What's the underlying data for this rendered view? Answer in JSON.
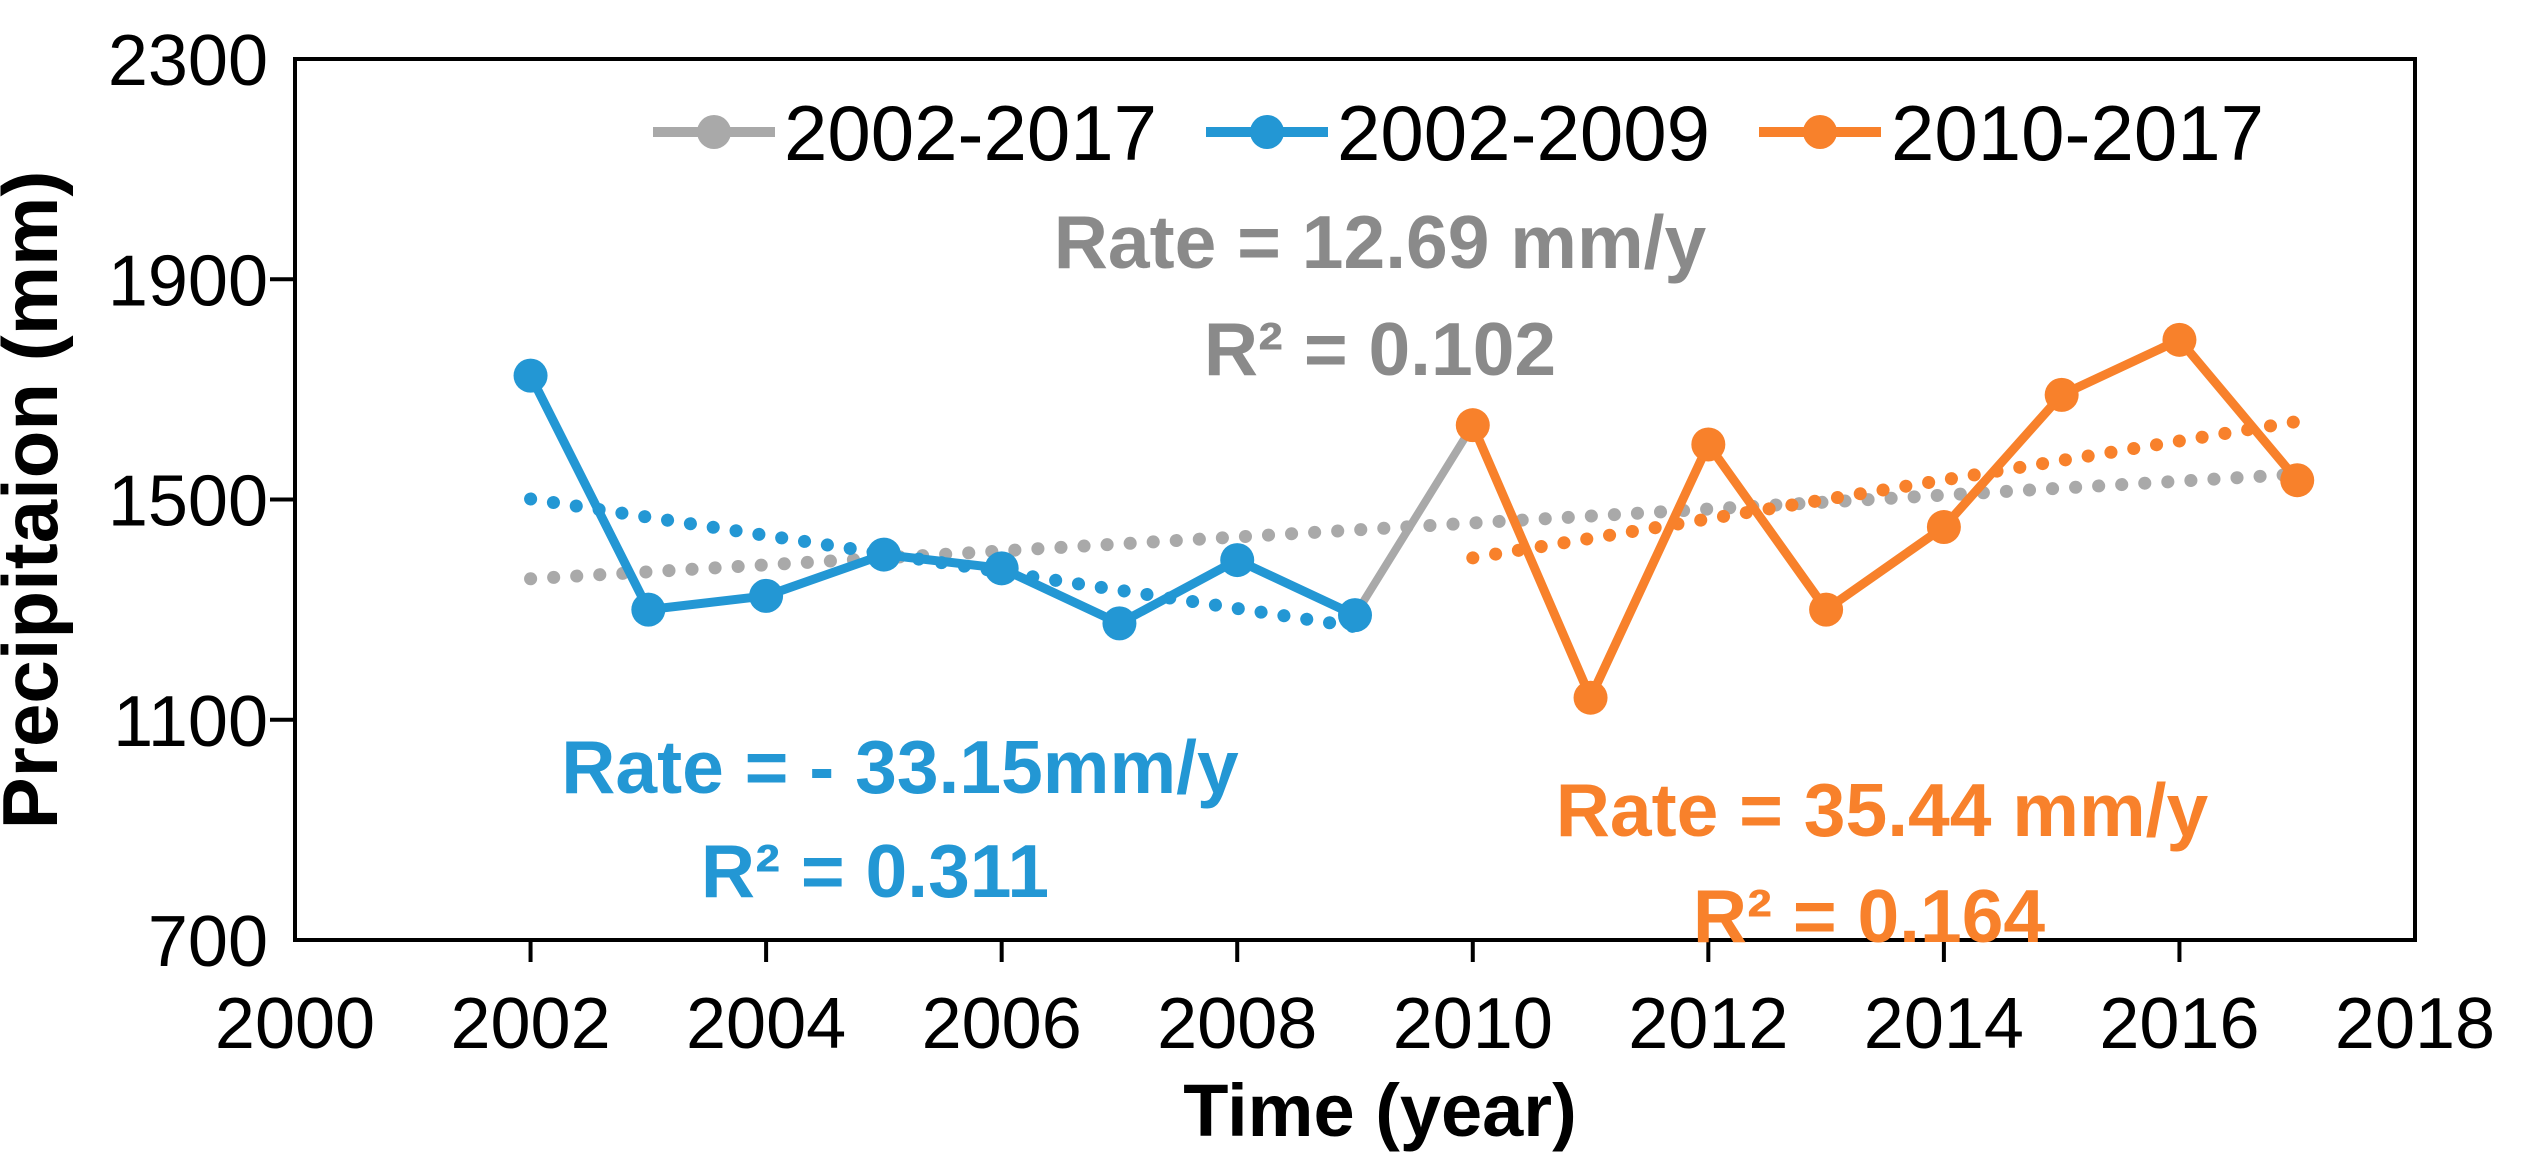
{
  "figure": {
    "xlabel": "Time (year)",
    "ylabel": "Precipitaion (mm)"
  },
  "legend": {
    "items": [
      {
        "label": "2002-2017",
        "color": "#A9A9A9"
      },
      {
        "label": "2002-2009",
        "color": "#2397D4"
      },
      {
        "label": "2010-2017",
        "color": "#F8812B"
      }
    ]
  },
  "annotations": {
    "full_period": {
      "line1": "Rate = 12.69 mm/y",
      "line2": "R² = 0.102",
      "color": "#8A8A8A"
    },
    "early_period": {
      "line1": "Rate = - 33.15mm/y",
      "line2": "R² = 0.311",
      "color": "#2397D4"
    },
    "late_period": {
      "line1": "Rate = 35.44 mm/y",
      "line2": "R² = 0.164",
      "color": "#F8812B"
    }
  },
  "chart_data": {
    "type": "line",
    "title": "",
    "xlabel": "Time (year)",
    "ylabel": "Precipitaion (mm)",
    "xlim": [
      2000,
      2018
    ],
    "ylim": [
      700,
      2300
    ],
    "x_ticks": [
      2000,
      2002,
      2004,
      2006,
      2008,
      2010,
      2012,
      2014,
      2016,
      2018
    ],
    "y_ticks": [
      700,
      1100,
      1500,
      1900,
      2300
    ],
    "grid": false,
    "legend_position": "top-center",
    "axis_color": "#000000",
    "series": [
      {
        "name": "2002-2017",
        "color": "#A9A9A9",
        "markers": false,
        "x": [
          2002,
          2003,
          2004,
          2005,
          2006,
          2007,
          2008,
          2009,
          2010,
          2011,
          2012,
          2013,
          2014,
          2015,
          2016,
          2017
        ],
        "values": [
          1725,
          1300,
          1325,
          1400,
          1375,
          1275,
          1390,
          1290,
          1635,
          1140,
          1600,
          1300,
          1450,
          1690,
          1790,
          1535
        ]
      },
      {
        "name": "2002-2009",
        "color": "#2397D4",
        "markers": true,
        "x": [
          2002,
          2003,
          2004,
          2005,
          2006,
          2007,
          2008,
          2009
        ],
        "values": [
          1725,
          1300,
          1325,
          1400,
          1375,
          1275,
          1390,
          1290
        ]
      },
      {
        "name": "2010-2017",
        "color": "#F8812B",
        "markers": true,
        "x": [
          2010,
          2011,
          2012,
          2013,
          2014,
          2015,
          2016,
          2017
        ],
        "values": [
          1635,
          1140,
          1600,
          1300,
          1450,
          1690,
          1790,
          1535
        ]
      }
    ],
    "trendlines": [
      {
        "name": "2002-2017",
        "color": "#A9A9A9",
        "rate_mm_per_y": 12.69,
        "r_squared": 0.102,
        "x1": 2002,
        "y1": 1356,
        "x2": 2017,
        "y2": 1546
      },
      {
        "name": "2002-2009",
        "color": "#2397D4",
        "rate_mm_per_y": -33.15,
        "r_squared": 0.311,
        "x1": 2002,
        "y1": 1501,
        "x2": 2009.15,
        "y2": 1264
      },
      {
        "name": "2010-2017",
        "color": "#F8812B",
        "rate_mm_per_y": 35.44,
        "r_squared": 0.164,
        "x1": 2010,
        "y1": 1394,
        "x2": 2017.15,
        "y2": 1647
      }
    ]
  }
}
